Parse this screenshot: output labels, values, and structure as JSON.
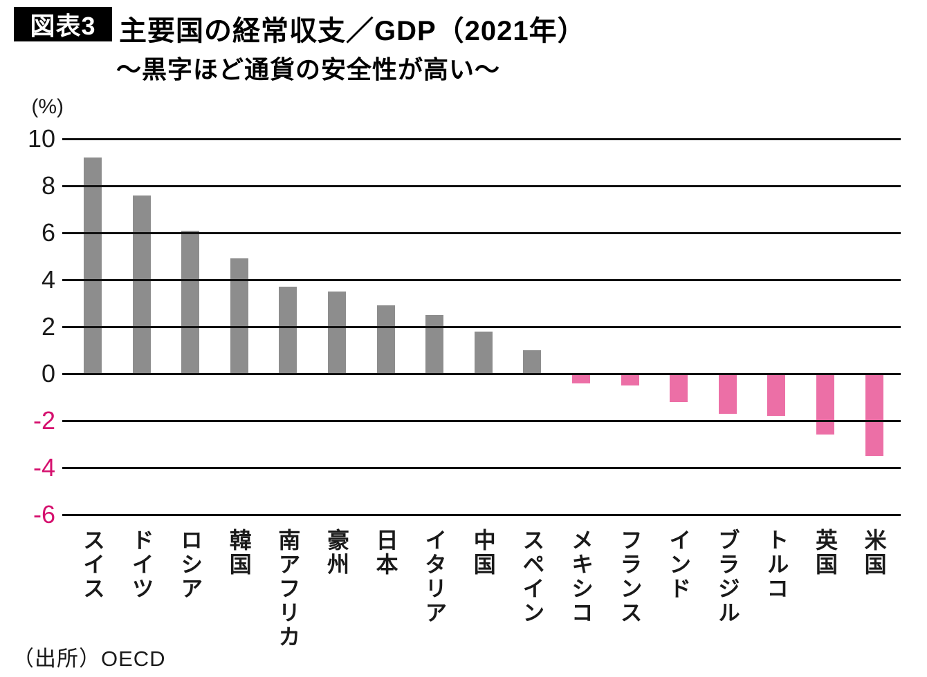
{
  "figure_label": "図表3",
  "title": "主要国の経常収支／GDP（2021年）",
  "subtitle": "～黒字ほど通貨の安全性が高い～",
  "unit_label": "(%)",
  "source": "（出所）OECD",
  "colors": {
    "positive_bar": "#8d8d8d",
    "negative_bar": "#ec6fa6",
    "positive_tick_text": "#1a1a1a",
    "negative_tick_text": "#d5106e",
    "gridline": "#111111",
    "badge_bg": "#000000",
    "badge_text": "#ffffff"
  },
  "chart_data": {
    "type": "bar",
    "title": "主要国の経常収支／GDP（2021年）",
    "subtitle": "～黒字ほど通貨の安全性が高い～",
    "ylabel": "(%)",
    "categories": [
      "スイス",
      "ドイツ",
      "ロシア",
      "韓国",
      "南アフリカ",
      "豪州",
      "日本",
      "イタリア",
      "中国",
      "スペイン",
      "メキシコ",
      "フランス",
      "インド",
      "ブラジル",
      "トルコ",
      "英国",
      "米国"
    ],
    "values": [
      9.2,
      7.6,
      6.1,
      4.9,
      3.7,
      3.5,
      2.9,
      2.5,
      1.8,
      1.0,
      -0.4,
      -0.5,
      -1.2,
      -1.7,
      -1.8,
      -2.6,
      -3.5
    ],
    "ylim": [
      -6,
      10
    ],
    "yticks": [
      10,
      8,
      6,
      4,
      2,
      0,
      -2,
      -4,
      -6
    ],
    "grid": true,
    "legend_position": "none",
    "source": "（出所）OECD"
  }
}
